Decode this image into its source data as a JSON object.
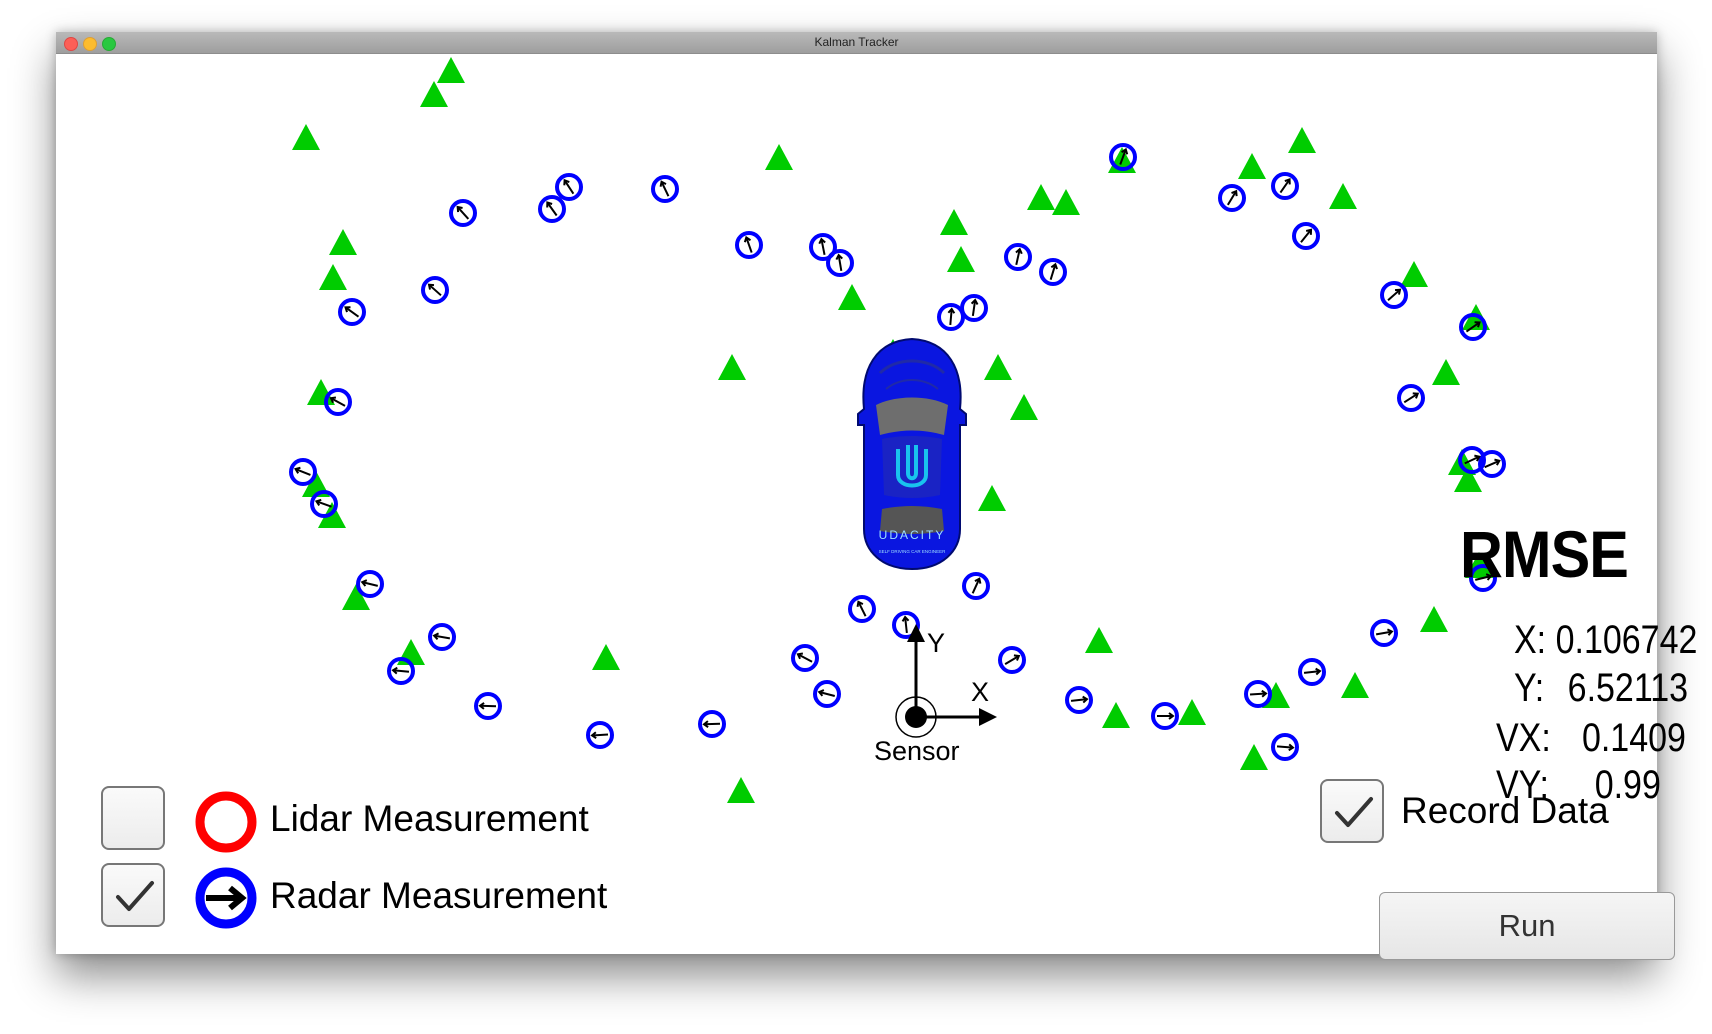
{
  "window": {
    "title": "Kalman Tracker"
  },
  "scene": {
    "sensor_label": "Sensor",
    "axis_x_label": "X",
    "axis_y_label": "Y",
    "car_brand": "UDACITY",
    "car_subtitle": "SELF DRIVING CAR ENGINEER",
    "car_color": "#0a16e0",
    "estimate_color": "#00cc00",
    "radar_color": "#0000ff",
    "lidar_color": "#ff0000"
  },
  "rmse": {
    "title": "RMSE",
    "x": {
      "label": "X:",
      "value": "0.106742"
    },
    "y": {
      "label": "Y:",
      "value": "6.52113"
    },
    "vx": {
      "label": "VX:",
      "value": "0.1409"
    },
    "vy": {
      "label": "VY:",
      "value": "0.99"
    }
  },
  "legend": {
    "lidar": {
      "label": "Lidar Measurement",
      "checked": false
    },
    "radar": {
      "label": "Radar Measurement",
      "checked": true
    }
  },
  "controls": {
    "record_label": "Record Data",
    "record_checked": true,
    "run_label": "Run"
  }
}
